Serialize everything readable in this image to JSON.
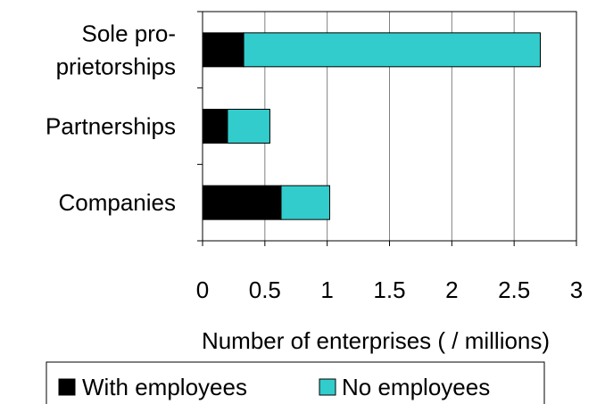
{
  "chart_data": {
    "type": "bar",
    "orientation": "horizontal",
    "stacked": true,
    "categories": [
      [
        "Sole pro-",
        "prietorships"
      ],
      [
        "Partnerships"
      ],
      [
        "Companies"
      ]
    ],
    "series": [
      {
        "name": "With employees",
        "values": [
          0.33,
          0.2,
          0.63
        ],
        "color": "#000000"
      },
      {
        "name": "No employees",
        "values": [
          2.38,
          0.34,
          0.39
        ],
        "color": "#33CCCC"
      }
    ],
    "xlabel": "Number of enterprises ( / millions)",
    "ylabel": "",
    "xlim": [
      0,
      3
    ],
    "xticks": [
      0,
      0.5,
      1,
      1.5,
      2,
      2.5,
      3
    ],
    "xtick_labels": [
      "0",
      "0.5",
      "1",
      "1.5",
      "2",
      "2.5",
      "3"
    ],
    "grid": "vertical",
    "legend_position": "bottom"
  }
}
